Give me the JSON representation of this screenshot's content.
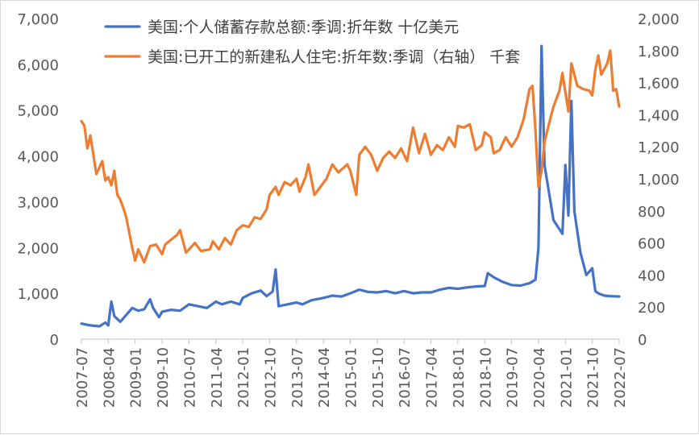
{
  "chart_data": {
    "type": "line",
    "title": "",
    "xlabel": "",
    "ylabel_left": "",
    "ylabel_right": "",
    "ylim_left": [
      0,
      7000
    ],
    "ylim_right": [
      0,
      2000
    ],
    "yticks_left": [
      "0",
      "1,000",
      "2,000",
      "3,000",
      "4,000",
      "5,000",
      "6,000",
      "7,000"
    ],
    "yticks_right": [
      "0",
      "200",
      "400",
      "600",
      "800",
      "1,000",
      "1,200",
      "1,400",
      "1,600",
      "1,800",
      "2,000"
    ],
    "x_ticks": [
      "2007-07",
      "2008-04",
      "2009-01",
      "2009-10",
      "2010-07",
      "2011-04",
      "2012-01",
      "2012-10",
      "2013-07",
      "2014-04",
      "2015-01",
      "2015-10",
      "2016-07",
      "2017-04",
      "2018-01",
      "2018-10",
      "2019-07",
      "2020-04",
      "2021-01",
      "2021-10",
      "2022-07"
    ],
    "grid": true,
    "legend_position": "top",
    "series": [
      {
        "name": "美国:个人储蓄存款总额:季调:折年数 十亿美元",
        "axis": "left",
        "color": "#4472C4",
        "points": [
          [
            "2007-07",
            340
          ],
          [
            "2007-10",
            300
          ],
          [
            "2008-01",
            280
          ],
          [
            "2008-03",
            360
          ],
          [
            "2008-04",
            300
          ],
          [
            "2008-05",
            820
          ],
          [
            "2008-06",
            500
          ],
          [
            "2008-08",
            380
          ],
          [
            "2008-10",
            530
          ],
          [
            "2008-12",
            680
          ],
          [
            "2009-02",
            620
          ],
          [
            "2009-04",
            650
          ],
          [
            "2009-06",
            870
          ],
          [
            "2009-07",
            680
          ],
          [
            "2009-09",
            480
          ],
          [
            "2009-10",
            600
          ],
          [
            "2010-01",
            640
          ],
          [
            "2010-04",
            620
          ],
          [
            "2010-07",
            760
          ],
          [
            "2010-10",
            720
          ],
          [
            "2011-01",
            680
          ],
          [
            "2011-04",
            820
          ],
          [
            "2011-06",
            760
          ],
          [
            "2011-09",
            820
          ],
          [
            "2011-12",
            760
          ],
          [
            "2012-01",
            900
          ],
          [
            "2012-04",
            1000
          ],
          [
            "2012-07",
            1060
          ],
          [
            "2012-09",
            940
          ],
          [
            "2012-11",
            1040
          ],
          [
            "2012-12",
            1520
          ],
          [
            "2013-01",
            720
          ],
          [
            "2013-04",
            760
          ],
          [
            "2013-07",
            800
          ],
          [
            "2013-09",
            760
          ],
          [
            "2013-12",
            850
          ],
          [
            "2014-04",
            900
          ],
          [
            "2014-07",
            950
          ],
          [
            "2014-10",
            930
          ],
          [
            "2015-01",
            1000
          ],
          [
            "2015-04",
            1080
          ],
          [
            "2015-07",
            1030
          ],
          [
            "2015-10",
            1020
          ],
          [
            "2016-01",
            1050
          ],
          [
            "2016-04",
            1000
          ],
          [
            "2016-07",
            1050
          ],
          [
            "2016-10",
            1000
          ],
          [
            "2017-01",
            1020
          ],
          [
            "2017-04",
            1020
          ],
          [
            "2017-07",
            1080
          ],
          [
            "2017-10",
            1120
          ],
          [
            "2018-01",
            1100
          ],
          [
            "2018-04",
            1130
          ],
          [
            "2018-07",
            1150
          ],
          [
            "2018-10",
            1160
          ],
          [
            "2018-11",
            1440
          ],
          [
            "2019-01",
            1350
          ],
          [
            "2019-04",
            1250
          ],
          [
            "2019-07",
            1180
          ],
          [
            "2019-10",
            1170
          ],
          [
            "2020-01",
            1220
          ],
          [
            "2020-03",
            1300
          ],
          [
            "2020-04",
            2000
          ],
          [
            "2020-05",
            6400
          ],
          [
            "2020-06",
            3800
          ],
          [
            "2020-07",
            3400
          ],
          [
            "2020-09",
            2600
          ],
          [
            "2020-11",
            2400
          ],
          [
            "2020-12",
            2300
          ],
          [
            "2021-01",
            3800
          ],
          [
            "2021-02",
            2700
          ],
          [
            "2021-03",
            5200
          ],
          [
            "2021-04",
            2800
          ],
          [
            "2021-06",
            1900
          ],
          [
            "2021-08",
            1400
          ],
          [
            "2021-10",
            1550
          ],
          [
            "2021-11",
            1050
          ],
          [
            "2021-12",
            1000
          ],
          [
            "2022-02",
            950
          ],
          [
            "2022-04",
            940
          ],
          [
            "2022-07",
            930
          ]
        ]
      },
      {
        "name": "美国:已开工的新建私人住宅:折年数:季调（右轴） 千套",
        "axis": "right",
        "color": "#ED7D31",
        "points": [
          [
            "2007-07",
            1360
          ],
          [
            "2007-08",
            1330
          ],
          [
            "2007-09",
            1190
          ],
          [
            "2007-10",
            1270
          ],
          [
            "2007-12",
            1030
          ],
          [
            "2008-02",
            1110
          ],
          [
            "2008-03",
            990
          ],
          [
            "2008-04",
            1010
          ],
          [
            "2008-05",
            960
          ],
          [
            "2008-06",
            1050
          ],
          [
            "2008-07",
            900
          ],
          [
            "2008-08",
            870
          ],
          [
            "2008-09",
            820
          ],
          [
            "2008-10",
            760
          ],
          [
            "2008-12",
            570
          ],
          [
            "2009-01",
            490
          ],
          [
            "2009-02",
            560
          ],
          [
            "2009-04",
            480
          ],
          [
            "2009-06",
            580
          ],
          [
            "2009-08",
            590
          ],
          [
            "2009-10",
            530
          ],
          [
            "2009-11",
            590
          ],
          [
            "2010-01",
            620
          ],
          [
            "2010-03",
            650
          ],
          [
            "2010-04",
            680
          ],
          [
            "2010-06",
            540
          ],
          [
            "2010-07",
            560
          ],
          [
            "2010-09",
            600
          ],
          [
            "2010-11",
            550
          ],
          [
            "2011-02",
            560
          ],
          [
            "2011-03",
            610
          ],
          [
            "2011-05",
            560
          ],
          [
            "2011-07",
            630
          ],
          [
            "2011-09",
            590
          ],
          [
            "2011-11",
            680
          ],
          [
            "2012-01",
            710
          ],
          [
            "2012-03",
            700
          ],
          [
            "2012-05",
            760
          ],
          [
            "2012-07",
            750
          ],
          [
            "2012-09",
            810
          ],
          [
            "2012-10",
            900
          ],
          [
            "2012-12",
            950
          ],
          [
            "2013-01",
            900
          ],
          [
            "2013-03",
            980
          ],
          [
            "2013-05",
            960
          ],
          [
            "2013-07",
            1000
          ],
          [
            "2013-08",
            920
          ],
          [
            "2013-10",
            1010
          ],
          [
            "2013-11",
            1090
          ],
          [
            "2014-01",
            900
          ],
          [
            "2014-03",
            950
          ],
          [
            "2014-05",
            1000
          ],
          [
            "2014-07",
            1090
          ],
          [
            "2014-09",
            1040
          ],
          [
            "2014-12",
            1090
          ],
          [
            "2015-01",
            1050
          ],
          [
            "2015-03",
            900
          ],
          [
            "2015-04",
            1150
          ],
          [
            "2015-06",
            1200
          ],
          [
            "2015-08",
            1150
          ],
          [
            "2015-10",
            1050
          ],
          [
            "2015-12",
            1130
          ],
          [
            "2016-02",
            1170
          ],
          [
            "2016-04",
            1130
          ],
          [
            "2016-06",
            1190
          ],
          [
            "2016-08",
            1110
          ],
          [
            "2016-10",
            1320
          ],
          [
            "2016-12",
            1160
          ],
          [
            "2017-02",
            1280
          ],
          [
            "2017-04",
            1150
          ],
          [
            "2017-06",
            1210
          ],
          [
            "2017-08",
            1180
          ],
          [
            "2017-10",
            1260
          ],
          [
            "2017-12",
            1200
          ],
          [
            "2018-01",
            1330
          ],
          [
            "2018-03",
            1320
          ],
          [
            "2018-05",
            1340
          ],
          [
            "2018-07",
            1180
          ],
          [
            "2018-09",
            1210
          ],
          [
            "2018-10",
            1290
          ],
          [
            "2018-12",
            1260
          ],
          [
            "2019-01",
            1160
          ],
          [
            "2019-03",
            1180
          ],
          [
            "2019-05",
            1260
          ],
          [
            "2019-07",
            1200
          ],
          [
            "2019-09",
            1260
          ],
          [
            "2019-11",
            1370
          ],
          [
            "2020-01",
            1560
          ],
          [
            "2020-02",
            1580
          ],
          [
            "2020-03",
            1300
          ],
          [
            "2020-04",
            950
          ],
          [
            "2020-05",
            1050
          ],
          [
            "2020-06",
            1230
          ],
          [
            "2020-08",
            1380
          ],
          [
            "2020-09",
            1450
          ],
          [
            "2020-11",
            1550
          ],
          [
            "2020-12",
            1660
          ],
          [
            "2021-02",
            1420
          ],
          [
            "2021-03",
            1720
          ],
          [
            "2021-05",
            1580
          ],
          [
            "2021-07",
            1560
          ],
          [
            "2021-09",
            1550
          ],
          [
            "2021-10",
            1520
          ],
          [
            "2021-11",
            1680
          ],
          [
            "2021-12",
            1770
          ],
          [
            "2022-01",
            1650
          ],
          [
            "2022-03",
            1720
          ],
          [
            "2022-04",
            1800
          ],
          [
            "2022-05",
            1550
          ],
          [
            "2022-06",
            1560
          ],
          [
            "2022-07",
            1450
          ]
        ]
      }
    ]
  }
}
